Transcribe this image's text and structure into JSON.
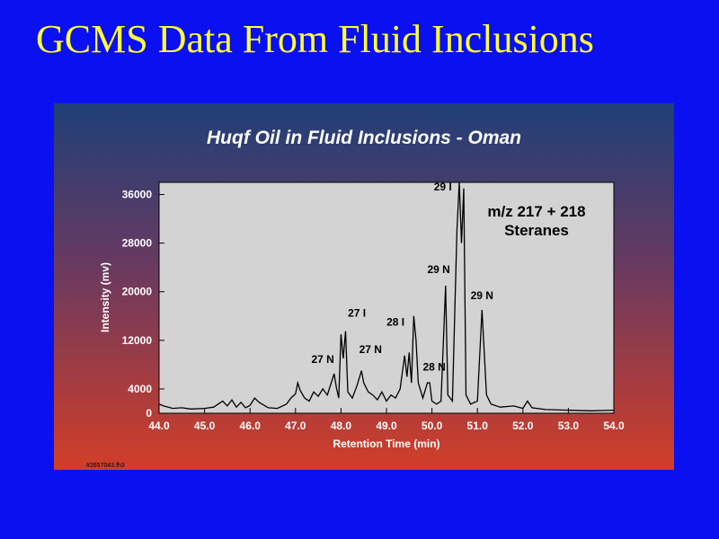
{
  "slide": {
    "title": "GCMS Data From Fluid Inclusions"
  },
  "chart_data": {
    "type": "line",
    "title": "Huqf Oil in Fluid Inclusions - Oman",
    "xlabel": "Retention Time (min)",
    "ylabel": "Intensity (mv)",
    "footer": "#2657043.fh3",
    "color": "#000000",
    "grid": false,
    "xlim": [
      44,
      54
    ],
    "ylim": [
      0,
      38000
    ],
    "xticks": [
      {
        "value": 44,
        "label": "44.0"
      },
      {
        "value": 45,
        "label": "45.0"
      },
      {
        "value": 46,
        "label": "46.0"
      },
      {
        "value": 47,
        "label": "47.0"
      },
      {
        "value": 48,
        "label": "48.0"
      },
      {
        "value": 49,
        "label": "49.0"
      },
      {
        "value": 50,
        "label": "50.0"
      },
      {
        "value": 51,
        "label": "51.0"
      },
      {
        "value": 52,
        "label": "52.0"
      },
      {
        "value": 53,
        "label": "53.0"
      },
      {
        "value": 54,
        "label": "54.0"
      }
    ],
    "yticks": [
      0,
      4000,
      12000,
      20000,
      28000,
      36000
    ],
    "x": [
      44.0,
      44.1,
      44.3,
      44.5,
      44.7,
      45.0,
      45.2,
      45.4,
      45.5,
      45.6,
      45.7,
      45.8,
      45.9,
      46.0,
      46.1,
      46.2,
      46.4,
      46.6,
      46.8,
      46.9,
      47.0,
      47.05,
      47.1,
      47.2,
      47.3,
      47.4,
      47.5,
      47.6,
      47.7,
      47.85,
      47.9,
      47.95,
      48.0,
      48.05,
      48.1,
      48.15,
      48.25,
      48.35,
      48.45,
      48.5,
      48.6,
      48.7,
      48.8,
      48.9,
      49.0,
      49.1,
      49.2,
      49.3,
      49.4,
      49.45,
      49.5,
      49.55,
      49.6,
      49.65,
      49.7,
      49.8,
      49.9,
      49.95,
      50.0,
      50.1,
      50.2,
      50.3,
      50.35,
      50.45,
      50.55,
      50.6,
      50.65,
      50.7,
      50.75,
      50.85,
      51.0,
      51.1,
      51.2,
      51.3,
      51.5,
      51.8,
      52.0,
      52.1,
      52.2,
      52.5,
      53.0,
      53.5,
      54.0
    ],
    "values": [
      1500,
      1200,
      800,
      900,
      700,
      800,
      1000,
      2000,
      1200,
      2200,
      1000,
      1800,
      900,
      1300,
      2500,
      1800,
      900,
      800,
      1500,
      2500,
      3200,
      5000,
      3800,
      2500,
      2000,
      3500,
      2800,
      4000,
      3000,
      6500,
      4200,
      2500,
      13000,
      9000,
      13500,
      3500,
      2500,
      4500,
      7000,
      5000,
      3500,
      3000,
      2200,
      3500,
      2000,
      3000,
      2500,
      4000,
      9500,
      6000,
      10000,
      5000,
      16000,
      12000,
      5000,
      2500,
      5000,
      5000,
      2000,
      1500,
      2000,
      21000,
      3000,
      2000,
      30000,
      38000,
      28000,
      37000,
      3000,
      1500,
      2000,
      17000,
      3000,
      1500,
      1000,
      1200,
      800,
      2000,
      900,
      600,
      500,
      400,
      500
    ],
    "annotations": [
      {
        "text": "29 I",
        "x": 50.24,
        "y": 36700
      },
      {
        "text": "m/z 217 + 218",
        "x": 52.3,
        "y": 32400
      },
      {
        "text": "Steranes",
        "x": 52.3,
        "y": 29300
      },
      {
        "text": "29 N",
        "x": 50.15,
        "y": 23100
      },
      {
        "text": "29 N",
        "x": 51.1,
        "y": 18800
      },
      {
        "text": "28 I",
        "x": 49.2,
        "y": 14400
      },
      {
        "text": "28 N",
        "x": 50.05,
        "y": 7000
      },
      {
        "text": "27 I",
        "x": 48.35,
        "y": 15900
      },
      {
        "text": "27 N",
        "x": 47.6,
        "y": 8300
      },
      {
        "text": "27 N",
        "x": 48.65,
        "y": 9900
      }
    ]
  }
}
